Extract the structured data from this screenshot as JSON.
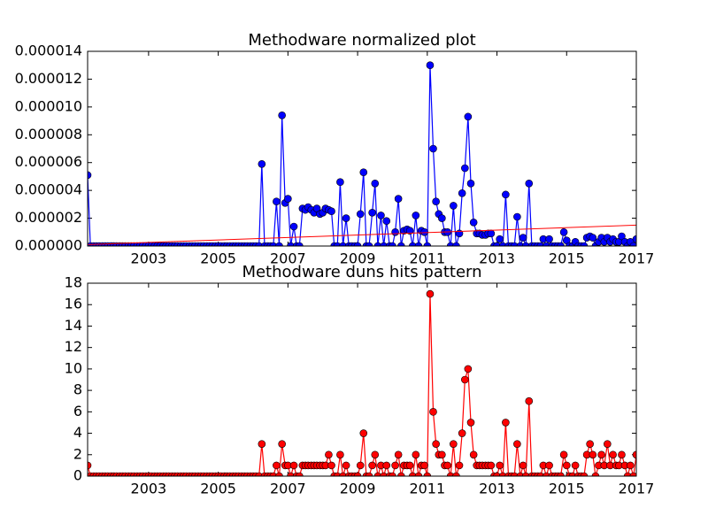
{
  "chart_data": [
    {
      "type": "line",
      "title": "Methodware normalized plot",
      "color": "#0000ff",
      "markers": true,
      "xlim": [
        2001.25,
        2017
      ],
      "xticks": [
        2003,
        2005,
        2007,
        2009,
        2011,
        2013,
        2015,
        2017
      ],
      "ylim": [
        0,
        1.4e-05
      ],
      "yticks": [
        {
          "value": 0,
          "label": "0.000000"
        },
        {
          "value": 2e-06,
          "label": "0.000002"
        },
        {
          "value": 4e-06,
          "label": "0.000004"
        },
        {
          "value": 6e-06,
          "label": "0.000006"
        },
        {
          "value": 8e-06,
          "label": "0.000008"
        },
        {
          "value": 1e-05,
          "label": "0.000010"
        },
        {
          "value": 1.2e-05,
          "label": "0.000012"
        },
        {
          "value": 1.4e-05,
          "label": "0.000014"
        }
      ],
      "x": [
        2001.25,
        2001.33,
        2001.42,
        2001.5,
        2001.58,
        2001.67,
        2001.75,
        2001.83,
        2001.92,
        2002,
        2002.08,
        2002.17,
        2002.25,
        2002.33,
        2002.42,
        2002.5,
        2002.58,
        2002.67,
        2002.75,
        2002.83,
        2002.92,
        2003,
        2003.08,
        2003.17,
        2003.25,
        2003.33,
        2003.42,
        2003.5,
        2003.58,
        2003.67,
        2003.75,
        2003.83,
        2003.92,
        2004,
        2004.08,
        2004.17,
        2004.25,
        2004.33,
        2004.42,
        2004.5,
        2004.58,
        2004.67,
        2004.75,
        2004.83,
        2004.92,
        2005,
        2005.08,
        2005.17,
        2005.25,
        2005.33,
        2005.42,
        2005.5,
        2005.58,
        2005.67,
        2005.75,
        2005.83,
        2005.92,
        2006,
        2006.08,
        2006.17,
        2006.25,
        2006.33,
        2006.42,
        2006.5,
        2006.58,
        2006.67,
        2006.75,
        2006.83,
        2006.92,
        2007,
        2007.08,
        2007.17,
        2007.25,
        2007.33,
        2007.42,
        2007.5,
        2007.58,
        2007.67,
        2007.75,
        2007.83,
        2007.92,
        2008,
        2008.08,
        2008.17,
        2008.25,
        2008.33,
        2008.42,
        2008.5,
        2008.58,
        2008.67,
        2008.75,
        2008.83,
        2008.92,
        2009,
        2009.08,
        2009.17,
        2009.25,
        2009.33,
        2009.42,
        2009.5,
        2009.58,
        2009.67,
        2009.75,
        2009.83,
        2009.92,
        2010,
        2010.08,
        2010.17,
        2010.25,
        2010.33,
        2010.42,
        2010.5,
        2010.58,
        2010.67,
        2010.75,
        2010.83,
        2010.92,
        2011,
        2011.08,
        2011.17,
        2011.25,
        2011.33,
        2011.42,
        2011.5,
        2011.58,
        2011.67,
        2011.75,
        2011.83,
        2011.92,
        2012,
        2012.08,
        2012.17,
        2012.25,
        2012.33,
        2012.42,
        2012.5,
        2012.58,
        2012.67,
        2012.75,
        2012.83,
        2012.92,
        2013,
        2013.08,
        2013.17,
        2013.25,
        2013.33,
        2013.42,
        2013.5,
        2013.58,
        2013.67,
        2013.75,
        2013.83,
        2013.92,
        2014,
        2014.08,
        2014.17,
        2014.25,
        2014.33,
        2014.42,
        2014.5,
        2014.58,
        2014.67,
        2014.75,
        2014.83,
        2014.92,
        2015,
        2015.08,
        2015.17,
        2015.25,
        2015.33,
        2015.42,
        2015.5,
        2015.58,
        2015.67,
        2015.75,
        2015.83,
        2015.92,
        2016,
        2016.08,
        2016.17,
        2016.25,
        2016.33,
        2016.42,
        2016.5,
        2016.58,
        2016.67,
        2016.75,
        2016.83,
        2016.92,
        2017
      ],
      "values": [
        5.1e-06,
        0,
        0,
        0,
        0,
        0,
        0,
        0,
        0,
        0,
        0,
        0,
        0,
        0,
        0,
        0,
        0,
        0,
        0,
        0,
        0,
        0,
        0,
        0,
        0,
        0,
        0,
        0,
        0,
        0,
        0,
        0,
        0,
        0,
        0,
        0,
        0,
        0,
        0,
        0,
        0,
        0,
        0,
        0,
        0,
        0,
        0,
        0,
        0,
        0,
        0,
        0,
        0,
        0,
        0,
        0,
        0,
        0,
        0,
        0,
        5.9e-06,
        0,
        0,
        0,
        0,
        3.2e-06,
        0,
        9.4e-06,
        3.1e-06,
        3.4e-06,
        0,
        1.4e-06,
        0,
        0,
        2.7e-06,
        2.6e-06,
        2.8e-06,
        2.6e-06,
        2.4e-06,
        2.7e-06,
        2.3e-06,
        2.4e-06,
        2.7e-06,
        2.6e-06,
        2.5e-06,
        0,
        0,
        4.6e-06,
        0,
        2e-06,
        0,
        0,
        0,
        0,
        2.3e-06,
        5.3e-06,
        0,
        0,
        2.4e-06,
        4.5e-06,
        0,
        2.2e-06,
        0,
        1.8e-06,
        0,
        0,
        1e-06,
        3.4e-06,
        0,
        1.1e-06,
        1.2e-06,
        1.1e-06,
        0,
        2.2e-06,
        0,
        1.1e-06,
        1e-06,
        0,
        1.3e-05,
        7e-06,
        3.2e-06,
        2.3e-06,
        2e-06,
        1e-06,
        1e-06,
        0,
        2.9e-06,
        0,
        9e-07,
        3.8e-06,
        5.6e-06,
        9.3e-06,
        4.5e-06,
        1.7e-06,
        9e-07,
        9e-07,
        8e-07,
        8e-07,
        9e-07,
        9e-07,
        0,
        0,
        5e-07,
        0,
        3.7e-06,
        0,
        0,
        0,
        2.1e-06,
        0,
        6e-07,
        0,
        4.5e-06,
        0,
        0,
        0,
        0,
        5e-07,
        0,
        5e-07,
        0,
        0,
        0,
        0,
        1e-06,
        4e-07,
        0,
        0,
        3e-07,
        0,
        0,
        0,
        6e-07,
        7e-07,
        6e-07,
        0,
        3e-07,
        6e-07,
        3e-07,
        6e-07,
        3e-07,
        5e-07,
        3e-07,
        3e-07,
        7e-07,
        3e-07,
        0,
        3e-07,
        0,
        5e-07
      ],
      "trendline": {
        "x": [
          2001.25,
          2017
        ],
        "values": [
          1e-07,
          1.5e-06
        ],
        "color": "#ff0000"
      }
    },
    {
      "type": "line",
      "title": "Methodware duns hits pattern",
      "color": "#ff0000",
      "markers": true,
      "xlim": [
        2001.25,
        2017
      ],
      "xticks": [
        2003,
        2005,
        2007,
        2009,
        2011,
        2013,
        2015,
        2017
      ],
      "ylim": [
        0,
        18
      ],
      "yticks": [
        0,
        2,
        4,
        6,
        8,
        10,
        12,
        14,
        16,
        18
      ],
      "x": [
        2001.25,
        2001.33,
        2001.42,
        2001.5,
        2001.58,
        2001.67,
        2001.75,
        2001.83,
        2001.92,
        2002,
        2002.08,
        2002.17,
        2002.25,
        2002.33,
        2002.42,
        2002.5,
        2002.58,
        2002.67,
        2002.75,
        2002.83,
        2002.92,
        2003,
        2003.08,
        2003.17,
        2003.25,
        2003.33,
        2003.42,
        2003.5,
        2003.58,
        2003.67,
        2003.75,
        2003.83,
        2003.92,
        2004,
        2004.08,
        2004.17,
        2004.25,
        2004.33,
        2004.42,
        2004.5,
        2004.58,
        2004.67,
        2004.75,
        2004.83,
        2004.92,
        2005,
        2005.08,
        2005.17,
        2005.25,
        2005.33,
        2005.42,
        2005.5,
        2005.58,
        2005.67,
        2005.75,
        2005.83,
        2005.92,
        2006,
        2006.08,
        2006.17,
        2006.25,
        2006.33,
        2006.42,
        2006.5,
        2006.58,
        2006.67,
        2006.75,
        2006.83,
        2006.92,
        2007,
        2007.08,
        2007.17,
        2007.25,
        2007.33,
        2007.42,
        2007.5,
        2007.58,
        2007.67,
        2007.75,
        2007.83,
        2007.92,
        2008,
        2008.08,
        2008.17,
        2008.25,
        2008.33,
        2008.42,
        2008.5,
        2008.58,
        2008.67,
        2008.75,
        2008.83,
        2008.92,
        2009,
        2009.08,
        2009.17,
        2009.25,
        2009.33,
        2009.42,
        2009.5,
        2009.58,
        2009.67,
        2009.75,
        2009.83,
        2009.92,
        2010,
        2010.08,
        2010.17,
        2010.25,
        2010.33,
        2010.42,
        2010.5,
        2010.58,
        2010.67,
        2010.75,
        2010.83,
        2010.92,
        2011,
        2011.08,
        2011.17,
        2011.25,
        2011.33,
        2011.42,
        2011.5,
        2011.58,
        2011.67,
        2011.75,
        2011.83,
        2011.92,
        2012,
        2012.08,
        2012.17,
        2012.25,
        2012.33,
        2012.42,
        2012.5,
        2012.58,
        2012.67,
        2012.75,
        2012.83,
        2012.92,
        2013,
        2013.08,
        2013.17,
        2013.25,
        2013.33,
        2013.42,
        2013.5,
        2013.58,
        2013.67,
        2013.75,
        2013.83,
        2013.92,
        2014,
        2014.08,
        2014.17,
        2014.25,
        2014.33,
        2014.42,
        2014.5,
        2014.58,
        2014.67,
        2014.75,
        2014.83,
        2014.92,
        2015,
        2015.08,
        2015.17,
        2015.25,
        2015.33,
        2015.42,
        2015.5,
        2015.58,
        2015.67,
        2015.75,
        2015.83,
        2015.92,
        2016,
        2016.08,
        2016.17,
        2016.25,
        2016.33,
        2016.42,
        2016.5,
        2016.58,
        2016.67,
        2016.75,
        2016.83,
        2016.92,
        2017
      ],
      "values": [
        1,
        0,
        0,
        0,
        0,
        0,
        0,
        0,
        0,
        0,
        0,
        0,
        0,
        0,
        0,
        0,
        0,
        0,
        0,
        0,
        0,
        0,
        0,
        0,
        0,
        0,
        0,
        0,
        0,
        0,
        0,
        0,
        0,
        0,
        0,
        0,
        0,
        0,
        0,
        0,
        0,
        0,
        0,
        0,
        0,
        0,
        0,
        0,
        0,
        0,
        0,
        0,
        0,
        0,
        0,
        0,
        0,
        0,
        0,
        0,
        3,
        0,
        0,
        0,
        0,
        1,
        0,
        3,
        1,
        1,
        0,
        1,
        0,
        0,
        1,
        1,
        1,
        1,
        1,
        1,
        1,
        1,
        1,
        2,
        1,
        0,
        0,
        2,
        0,
        1,
        0,
        0,
        0,
        0,
        1,
        4,
        0,
        0,
        1,
        2,
        0,
        1,
        0,
        1,
        0,
        0,
        1,
        2,
        0,
        1,
        1,
        1,
        0,
        2,
        0,
        1,
        1,
        0,
        17,
        6,
        3,
        2,
        2,
        1,
        1,
        0,
        3,
        0,
        1,
        4,
        9,
        10,
        5,
        2,
        1,
        1,
        1,
        1,
        1,
        1,
        0,
        0,
        1,
        0,
        5,
        0,
        0,
        0,
        3,
        0,
        1,
        0,
        7,
        0,
        0,
        0,
        0,
        1,
        0,
        1,
        0,
        0,
        0,
        0,
        2,
        1,
        0,
        0,
        1,
        0,
        0,
        0,
        2,
        3,
        2,
        0,
        1,
        2,
        1,
        3,
        1,
        2,
        1,
        1,
        2,
        1,
        0,
        1,
        0,
        2
      ]
    }
  ]
}
